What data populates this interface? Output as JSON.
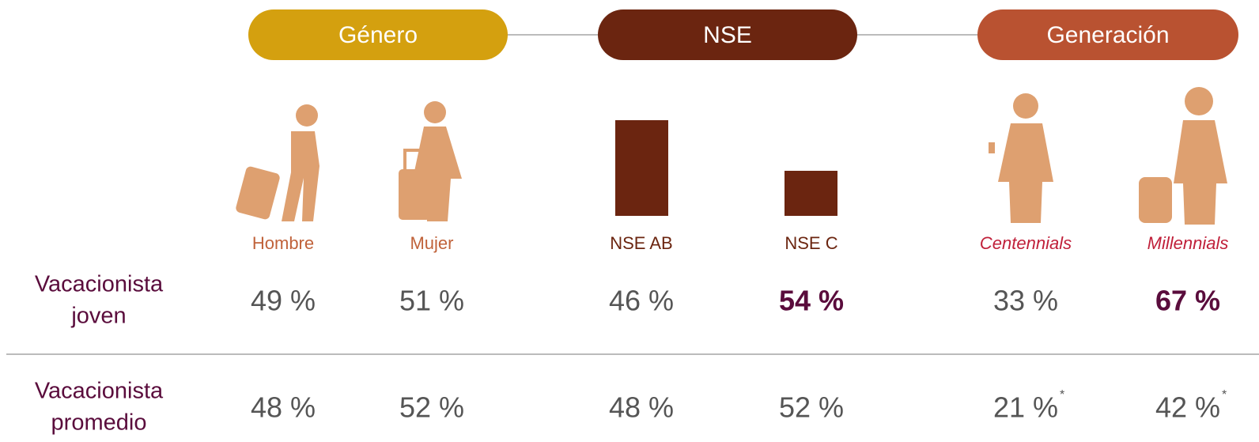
{
  "groups": [
    {
      "title": "Género",
      "color": "#d4a00f"
    },
    {
      "title": "NSE",
      "color": "#6b2510"
    },
    {
      "title": "Generación",
      "color": "#b95231"
    }
  ],
  "columns": [
    {
      "label": "Hombre",
      "color": "#c0623a"
    },
    {
      "label": "Mujer",
      "color": "#c0623a"
    },
    {
      "label": "NSE AB",
      "color": "#6b2510"
    },
    {
      "label": "NSE C",
      "color": "#6b2510"
    },
    {
      "label": "Centennials",
      "color": "#c0203a",
      "italic": true
    },
    {
      "label": "Millennials",
      "color": "#c0203a",
      "italic": true
    }
  ],
  "rows": [
    {
      "label": [
        "Vacacionista",
        "joven"
      ],
      "cells": [
        {
          "text": "49 %"
        },
        {
          "text": "51 %"
        },
        {
          "text": "46 %"
        },
        {
          "text": "54 %",
          "bold": true
        },
        {
          "text": "33 %"
        },
        {
          "text": "67 %",
          "bold": true
        }
      ]
    },
    {
      "label": [
        "Vacacionista",
        "promedio"
      ],
      "cells": [
        {
          "text": "48 %"
        },
        {
          "text": "52 %"
        },
        {
          "text": "48 %"
        },
        {
          "text": "52 %"
        },
        {
          "text": "21 %",
          "note": "*"
        },
        {
          "text": "42 %",
          "note": "*"
        }
      ]
    }
  ]
}
